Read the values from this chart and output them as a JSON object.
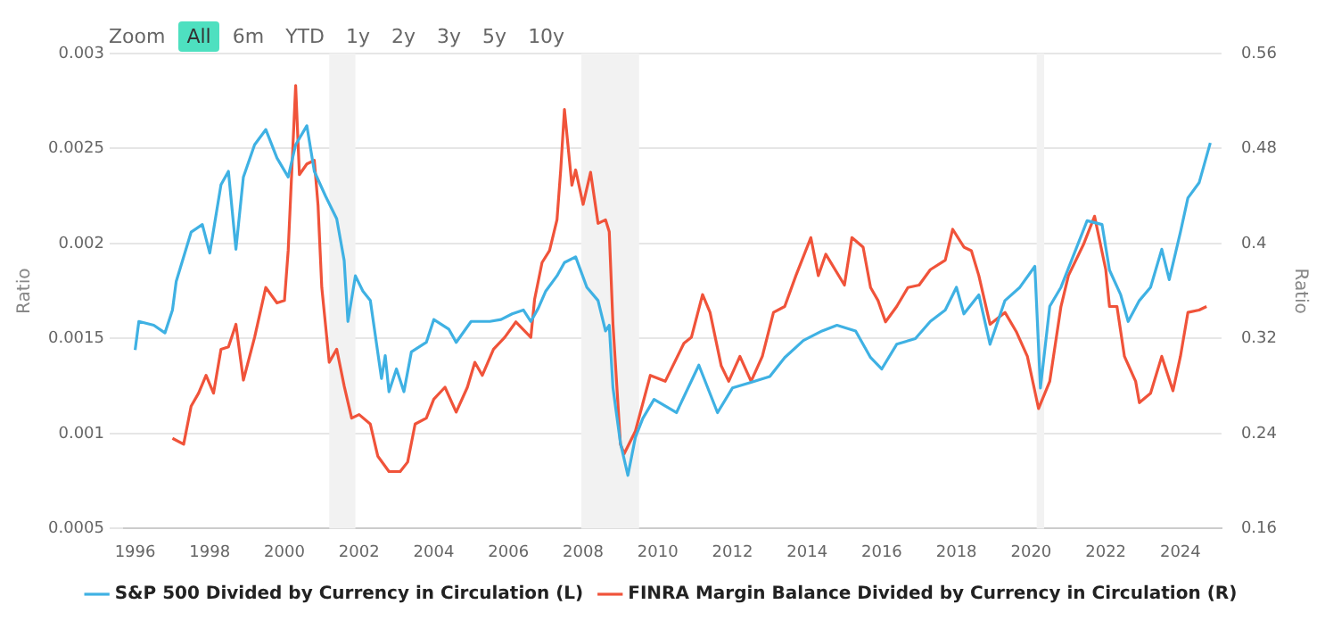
{
  "chart_data": {
    "type": "line",
    "ylabel": "Ratio",
    "y2label": "Ratio",
    "annotations": [
      "Zoom",
      "All",
      "6m",
      "YTD",
      "1y",
      "2y",
      "3y",
      "5y",
      "10y"
    ],
    "xlim": [
      1995.7,
      2025.1
    ],
    "xticks": [
      1996,
      1998,
      2000,
      2002,
      2004,
      2006,
      2008,
      2010,
      2012,
      2014,
      2016,
      2018,
      2020,
      2022,
      2024
    ],
    "ylim": [
      0.0005,
      0.003
    ],
    "yticks": [
      0.0005,
      0.001,
      0.0015,
      0.002,
      0.0025,
      0.003
    ],
    "y2lim": [
      0.16,
      0.56
    ],
    "y2ticks": [
      0.16,
      0.24,
      0.32,
      0.4,
      0.48,
      0.56
    ],
    "grid": "y",
    "legend": "bottom",
    "marker": "none",
    "line_style": "solid",
    "bands": [
      {
        "axis": "x",
        "from": 2001.2,
        "to": 2001.9,
        "color": "#f2f2f2"
      },
      {
        "axis": "x",
        "from": 2007.95,
        "to": 2009.5,
        "color": "#f2f2f2"
      },
      {
        "axis": "x",
        "from": 2020.15,
        "to": 2020.35,
        "color": "#f2f2f2"
      }
    ],
    "series": [
      {
        "name": "S&P 500 Divided by Currency in Circulation (L)",
        "color": "#3fb1e3",
        "axis": "y",
        "x": [
          1996.0,
          1996.1,
          1996.5,
          1996.8,
          1997.0,
          1997.1,
          1997.5,
          1997.8,
          1998.0,
          1998.3,
          1998.5,
          1998.7,
          1998.9,
          1999.2,
          1999.5,
          1999.8,
          2000.1,
          2000.3,
          2000.6,
          2000.8,
          2001.1,
          2001.4,
          2001.6,
          2001.7,
          2001.9,
          2002.1,
          2002.3,
          2002.6,
          2002.7,
          2002.8,
          2003.0,
          2003.2,
          2003.4,
          2003.8,
          2004.0,
          2004.4,
          2004.6,
          2005.0,
          2005.5,
          2005.8,
          2006.1,
          2006.4,
          2006.6,
          2006.8,
          2007.0,
          2007.3,
          2007.5,
          2007.8,
          2008.1,
          2008.4,
          2008.6,
          2008.7,
          2008.8,
          2009.0,
          2009.2,
          2009.4,
          2009.6,
          2009.9,
          2010.5,
          2011.1,
          2011.6,
          2012.0,
          2012.5,
          2013.0,
          2013.4,
          2013.9,
          2014.4,
          2014.8,
          2015.3,
          2015.7,
          2016.0,
          2016.4,
          2016.9,
          2017.3,
          2017.7,
          2018.0,
          2018.2,
          2018.6,
          2018.9,
          2019.3,
          2019.7,
          2020.1,
          2020.25,
          2020.5,
          2020.8,
          2021.2,
          2021.5,
          2021.9,
          2022.1,
          2022.4,
          2022.6,
          2022.9,
          2023.2,
          2023.5,
          2023.7,
          2024.0,
          2024.2,
          2024.5,
          2024.8
        ],
        "values": [
          0.00144,
          0.00159,
          0.00157,
          0.00153,
          0.00165,
          0.0018,
          0.00206,
          0.0021,
          0.00195,
          0.00231,
          0.00238,
          0.00197,
          0.00235,
          0.00252,
          0.0026,
          0.00245,
          0.00235,
          0.00252,
          0.00262,
          0.00238,
          0.00225,
          0.00213,
          0.00191,
          0.00159,
          0.00183,
          0.00175,
          0.0017,
          0.00129,
          0.00141,
          0.00122,
          0.00134,
          0.00122,
          0.00143,
          0.00148,
          0.0016,
          0.00155,
          0.00148,
          0.00159,
          0.00159,
          0.0016,
          0.00163,
          0.00165,
          0.00159,
          0.00166,
          0.00175,
          0.00183,
          0.0019,
          0.00193,
          0.00177,
          0.0017,
          0.00154,
          0.00157,
          0.00124,
          0.00095,
          0.00078,
          0.00098,
          0.00108,
          0.00118,
          0.00111,
          0.00136,
          0.00111,
          0.00124,
          0.00127,
          0.0013,
          0.0014,
          0.00149,
          0.00154,
          0.00157,
          0.00154,
          0.0014,
          0.00134,
          0.00147,
          0.0015,
          0.00159,
          0.00165,
          0.00177,
          0.00163,
          0.00173,
          0.00147,
          0.0017,
          0.00177,
          0.00188,
          0.00124,
          0.00167,
          0.00177,
          0.00197,
          0.00212,
          0.0021,
          0.00186,
          0.00173,
          0.00159,
          0.0017,
          0.00177,
          0.00197,
          0.00181,
          0.00206,
          0.00224,
          0.00232,
          0.00253
        ]
      },
      {
        "name": "FINRA Margin Balance Divided by Currency in Circulation (R)",
        "color": "#f0533a",
        "axis": "y2",
        "x": [
          1997.0,
          1997.3,
          1997.5,
          1997.7,
          1997.9,
          1998.1,
          1998.3,
          1998.5,
          1998.7,
          1998.9,
          1999.2,
          1999.5,
          1999.8,
          2000.0,
          2000.1,
          2000.3,
          2000.4,
          2000.6,
          2000.8,
          2000.9,
          2001.0,
          2001.2,
          2001.4,
          2001.6,
          2001.8,
          2002.0,
          2002.3,
          2002.5,
          2002.8,
          2003.1,
          2003.3,
          2003.5,
          2003.8,
          2004.0,
          2004.3,
          2004.6,
          2004.9,
          2005.1,
          2005.3,
          2005.6,
          2005.9,
          2006.2,
          2006.6,
          2006.7,
          2006.9,
          2007.1,
          2007.3,
          2007.4,
          2007.5,
          2007.7,
          2007.8,
          2008.0,
          2008.2,
          2008.4,
          2008.6,
          2008.7,
          2008.8,
          2009.0,
          2009.1,
          2009.4,
          2009.8,
          2010.2,
          2010.7,
          2010.9,
          2011.2,
          2011.4,
          2011.7,
          2011.9,
          2012.2,
          2012.5,
          2012.8,
          2013.1,
          2013.4,
          2013.7,
          2014.1,
          2014.3,
          2014.5,
          2015.0,
          2015.2,
          2015.5,
          2015.7,
          2015.9,
          2016.1,
          2016.4,
          2016.7,
          2017.0,
          2017.3,
          2017.7,
          2017.9,
          2018.2,
          2018.4,
          2018.6,
          2018.9,
          2019.3,
          2019.6,
          2019.9,
          2020.2,
          2020.5,
          2020.8,
          2021.0,
          2021.4,
          2021.7,
          2022.0,
          2022.1,
          2022.3,
          2022.5,
          2022.8,
          2022.9,
          2023.2,
          2023.5,
          2023.8,
          2024.0,
          2024.2,
          2024.5,
          2024.7
        ],
        "values": [
          0.236,
          0.231,
          0.263,
          0.274,
          0.289,
          0.274,
          0.311,
          0.313,
          0.332,
          0.285,
          0.321,
          0.363,
          0.35,
          0.352,
          0.394,
          0.533,
          0.458,
          0.467,
          0.47,
          0.432,
          0.363,
          0.3,
          0.311,
          0.28,
          0.253,
          0.256,
          0.248,
          0.221,
          0.208,
          0.208,
          0.216,
          0.248,
          0.253,
          0.269,
          0.279,
          0.258,
          0.279,
          0.3,
          0.289,
          0.311,
          0.321,
          0.334,
          0.321,
          0.353,
          0.384,
          0.394,
          0.42,
          0.462,
          0.513,
          0.449,
          0.462,
          0.433,
          0.46,
          0.417,
          0.42,
          0.41,
          0.332,
          0.231,
          0.223,
          0.242,
          0.289,
          0.284,
          0.316,
          0.321,
          0.357,
          0.342,
          0.297,
          0.284,
          0.305,
          0.284,
          0.305,
          0.342,
          0.347,
          0.373,
          0.405,
          0.373,
          0.391,
          0.365,
          0.405,
          0.397,
          0.363,
          0.352,
          0.334,
          0.347,
          0.363,
          0.365,
          0.378,
          0.386,
          0.412,
          0.397,
          0.394,
          0.373,
          0.332,
          0.342,
          0.326,
          0.305,
          0.261,
          0.284,
          0.347,
          0.373,
          0.399,
          0.423,
          0.378,
          0.347,
          0.347,
          0.305,
          0.284,
          0.266,
          0.274,
          0.305,
          0.276,
          0.305,
          0.342,
          0.344,
          0.347
        ]
      }
    ]
  }
}
